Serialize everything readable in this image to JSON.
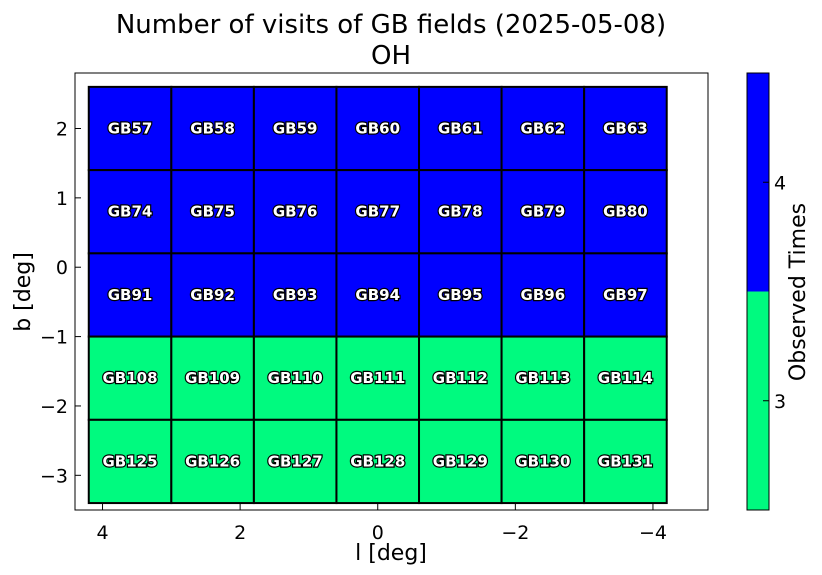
{
  "chart_data": {
    "type": "heatmap",
    "title": "Number of visits of GB fields (2025-05-08)",
    "subtitle": "OH",
    "xlabel": "l [deg]",
    "ylabel": "b [deg]",
    "xlim": [
      4.4,
      -4.8
    ],
    "ylim": [
      -3.5,
      2.8
    ],
    "x_inverted": true,
    "xticks": [
      4,
      2,
      0,
      -2,
      -4
    ],
    "xtick_labels": [
      "4",
      "2",
      "0",
      "−2",
      "−4"
    ],
    "yticks": [
      2,
      1,
      0,
      -1,
      -2,
      -3
    ],
    "ytick_labels": [
      "2",
      "1",
      "0",
      "−1",
      "−2",
      "−3"
    ],
    "columns_l": [
      3.6,
      2.4,
      1.2,
      0.0,
      -1.2,
      -2.4,
      -3.6
    ],
    "rows_b": [
      2.0,
      0.8,
      -0.4,
      -1.6,
      -2.8
    ],
    "cell_size_deg": 1.2,
    "fields": [
      [
        "GB57",
        "GB58",
        "GB59",
        "GB60",
        "GB61",
        "GB62",
        "GB63"
      ],
      [
        "GB74",
        "GB75",
        "GB76",
        "GB77",
        "GB78",
        "GB79",
        "GB80"
      ],
      [
        "GB91",
        "GB92",
        "GB93",
        "GB94",
        "GB95",
        "GB96",
        "GB97"
      ],
      [
        "GB108",
        "GB109",
        "GB110",
        "GB111",
        "GB112",
        "GB113",
        "GB114"
      ],
      [
        "GB125",
        "GB126",
        "GB127",
        "GB128",
        "GB129",
        "GB130",
        "GB131"
      ]
    ],
    "observed_times": [
      [
        4,
        4,
        4,
        4,
        4,
        4,
        4
      ],
      [
        4,
        4,
        4,
        4,
        4,
        4,
        4
      ],
      [
        4,
        4,
        4,
        4,
        4,
        4,
        4
      ],
      [
        3,
        3,
        3,
        3,
        3,
        3,
        3
      ],
      [
        3,
        3,
        3,
        3,
        3,
        3,
        3
      ]
    ],
    "colorbar": {
      "label": "Observed Times",
      "range": [
        2.5,
        4.5
      ],
      "ticks": [
        3,
        4
      ],
      "tick_labels": [
        "3",
        "4"
      ],
      "levels": [
        {
          "value": 3,
          "color": "#00fa7f"
        },
        {
          "value": 4,
          "color": "#0000ff"
        }
      ]
    },
    "grid": false
  }
}
